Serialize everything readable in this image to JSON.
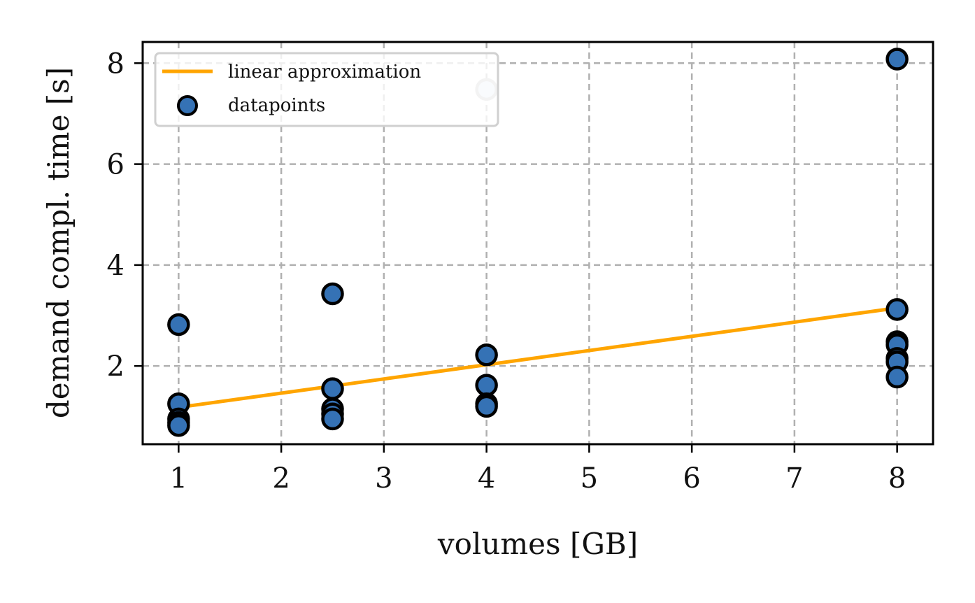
{
  "chart_data": {
    "type": "scatter",
    "xlabel": "volumes [GB]",
    "ylabel": "demand compl. time [s]",
    "xlim": [
      0.65,
      8.35
    ],
    "ylim": [
      0.45,
      8.42
    ],
    "xticks": [
      1,
      2,
      3,
      4,
      5,
      6,
      7,
      8
    ],
    "yticks": [
      2,
      4,
      6,
      8
    ],
    "grid": true,
    "grid_style": "dashed",
    "legend_position": "top-left",
    "colors": {
      "points": "#3572b5",
      "point_edge": "#000000",
      "line": "#ffa500",
      "grid": "#b0b0b0",
      "outlier_fill": "#dfe8f3",
      "outlier_edge": "#c4c4c4"
    },
    "series": [
      {
        "name": "linear approximation",
        "kind": "line",
        "x": [
          1,
          8
        ],
        "y": [
          1.18,
          3.15
        ]
      },
      {
        "name": "datapoints",
        "kind": "scatter",
        "points": [
          {
            "x": 1,
            "y": 2.82
          },
          {
            "x": 1,
            "y": 1.25
          },
          {
            "x": 1,
            "y": 0.95
          },
          {
            "x": 1,
            "y": 0.88
          },
          {
            "x": 1,
            "y": 0.82
          },
          {
            "x": 2.5,
            "y": 3.43
          },
          {
            "x": 2.5,
            "y": 1.55
          },
          {
            "x": 2.5,
            "y": 1.15
          },
          {
            "x": 2.5,
            "y": 1.05
          },
          {
            "x": 2.5,
            "y": 0.95
          },
          {
            "x": 4,
            "y": 7.48,
            "faded": true
          },
          {
            "x": 4,
            "y": 2.22
          },
          {
            "x": 4,
            "y": 1.62
          },
          {
            "x": 4,
            "y": 1.25
          },
          {
            "x": 4,
            "y": 1.2
          },
          {
            "x": 8,
            "y": 8.08
          },
          {
            "x": 8,
            "y": 3.12
          },
          {
            "x": 8,
            "y": 2.48
          },
          {
            "x": 8,
            "y": 2.42
          },
          {
            "x": 8,
            "y": 2.15
          },
          {
            "x": 8,
            "y": 2.08
          },
          {
            "x": 8,
            "y": 1.78
          }
        ]
      }
    ]
  }
}
